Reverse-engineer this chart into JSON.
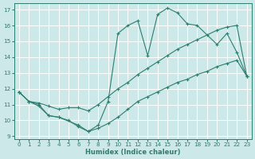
{
  "xlabel": "Humidex (Indice chaleur)",
  "bg_color": "#cce8e8",
  "grid_color": "#ffffff",
  "line_color": "#2e7d6e",
  "xlim": [
    -0.5,
    23.5
  ],
  "ylim": [
    8.8,
    17.4
  ],
  "xticks": [
    0,
    1,
    2,
    3,
    4,
    5,
    6,
    7,
    8,
    9,
    10,
    11,
    12,
    13,
    14,
    15,
    16,
    17,
    18,
    19,
    20,
    21,
    22,
    23
  ],
  "yticks": [
    9,
    10,
    11,
    12,
    13,
    14,
    15,
    16,
    17
  ],
  "line_top_x": [
    0,
    1,
    2,
    3,
    4,
    6,
    7,
    8,
    9,
    10,
    11,
    12,
    13,
    14,
    15,
    16,
    17,
    18,
    20,
    21,
    22,
    23
  ],
  "line_top_y": [
    11.8,
    11.2,
    11.0,
    10.3,
    10.2,
    9.7,
    9.3,
    9.7,
    11.2,
    15.5,
    16.0,
    16.3,
    14.1,
    16.7,
    17.1,
    16.8,
    16.1,
    16.0,
    14.8,
    15.5,
    14.3,
    12.8
  ],
  "line_mid_x": [
    0,
    1,
    2,
    3,
    4,
    5,
    6,
    7,
    8,
    9,
    10,
    11,
    12,
    13,
    14,
    15,
    16,
    17,
    18,
    19,
    20,
    21,
    22,
    23
  ],
  "line_mid_y": [
    11.8,
    11.2,
    11.1,
    10.9,
    10.7,
    10.8,
    10.8,
    10.6,
    11.0,
    11.5,
    12.0,
    12.4,
    12.9,
    13.3,
    13.7,
    14.1,
    14.5,
    14.8,
    15.1,
    15.4,
    15.7,
    15.9,
    16.0,
    12.8
  ],
  "line_bot_x": [
    0,
    1,
    2,
    3,
    4,
    5,
    6,
    7,
    8,
    9,
    10,
    11,
    12,
    13,
    14,
    15,
    16,
    17,
    18,
    19,
    20,
    21,
    22,
    23
  ],
  "line_bot_y": [
    11.8,
    11.2,
    10.9,
    10.3,
    10.2,
    10.0,
    9.6,
    9.3,
    9.5,
    9.8,
    10.2,
    10.7,
    11.2,
    11.5,
    11.8,
    12.1,
    12.4,
    12.6,
    12.9,
    13.1,
    13.4,
    13.6,
    13.8,
    12.8
  ]
}
